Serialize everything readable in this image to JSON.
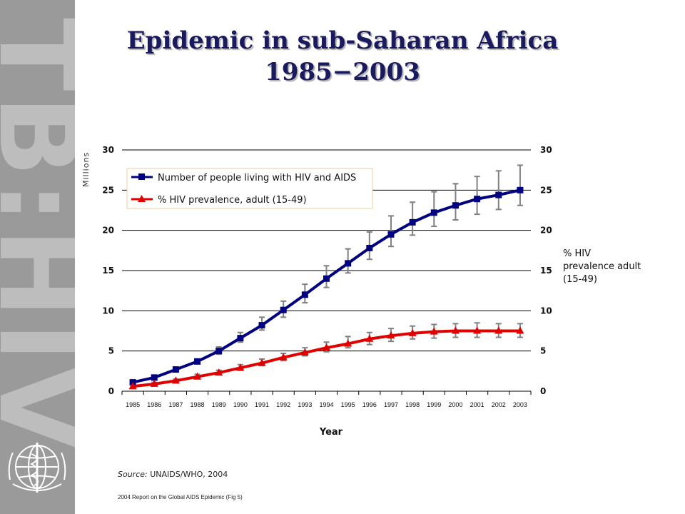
{
  "side_banner": {
    "text": "TB:HIV",
    "emblem": "who-emblem-icon"
  },
  "title": {
    "line1": "Epidemic in sub-Saharan Africa",
    "line2": "1985−2003"
  },
  "source": {
    "label": "Source:",
    "text": "UNAIDS/WHO, 2004"
  },
  "report": "2004 Report on the Global AIDS Epidemic (Fig 5)",
  "chart_data": {
    "type": "line",
    "xlabel": "Year",
    "ylabel_left": "Millions",
    "ylabel_right": "% HIV prevalence adult (15-49)",
    "categories": [
      "1985",
      "1986",
      "1987",
      "1988",
      "1989",
      "1990",
      "1991",
      "1992",
      "1993",
      "1994",
      "1995",
      "1996",
      "1997",
      "1998",
      "1999",
      "2000",
      "2001",
      "2002",
      "2003"
    ],
    "ylim": [
      0,
      30
    ],
    "yticks": [
      "0",
      "5",
      "10",
      "15",
      "20",
      "25",
      "30"
    ],
    "grid": true,
    "legend_position": "top-left",
    "series": [
      {
        "name": "Number of people living with HIV and AIDS",
        "color": "#000080",
        "marker": "square",
        "values": [
          1.1,
          1.7,
          2.7,
          3.7,
          5.0,
          6.6,
          8.2,
          10.1,
          12.0,
          14.0,
          15.9,
          17.8,
          19.5,
          21.0,
          22.2,
          23.1,
          23.9,
          24.4,
          25.0
        ],
        "error_low": [
          1.0,
          1.6,
          2.5,
          3.4,
          4.6,
          6.1,
          7.6,
          9.2,
          11.0,
          12.9,
          14.7,
          16.4,
          18.0,
          19.4,
          20.5,
          21.3,
          22.0,
          22.6,
          23.1
        ],
        "error_high": [
          1.2,
          1.8,
          2.9,
          4.0,
          5.5,
          7.3,
          9.2,
          11.2,
          13.3,
          15.6,
          17.7,
          19.8,
          21.8,
          23.5,
          24.8,
          25.8,
          26.7,
          27.4,
          28.1
        ]
      },
      {
        "name": "% HIV prevalence, adult (15-49)",
        "color": "#e00000",
        "marker": "triangle",
        "values": [
          0.6,
          0.9,
          1.3,
          1.8,
          2.3,
          2.9,
          3.5,
          4.2,
          4.8,
          5.4,
          5.9,
          6.5,
          6.9,
          7.2,
          7.4,
          7.5,
          7.5,
          7.5,
          7.5
        ],
        "error_low": [
          0.5,
          0.8,
          1.2,
          1.6,
          2.1,
          2.6,
          3.2,
          3.8,
          4.4,
          4.9,
          5.4,
          5.8,
          6.2,
          6.5,
          6.6,
          6.7,
          6.7,
          6.7,
          6.7
        ],
        "error_high": [
          0.7,
          1.1,
          1.5,
          2.1,
          2.6,
          3.3,
          4.0,
          4.7,
          5.4,
          6.1,
          6.8,
          7.3,
          7.8,
          8.1,
          8.3,
          8.4,
          8.5,
          8.4,
          8.4
        ]
      }
    ]
  }
}
